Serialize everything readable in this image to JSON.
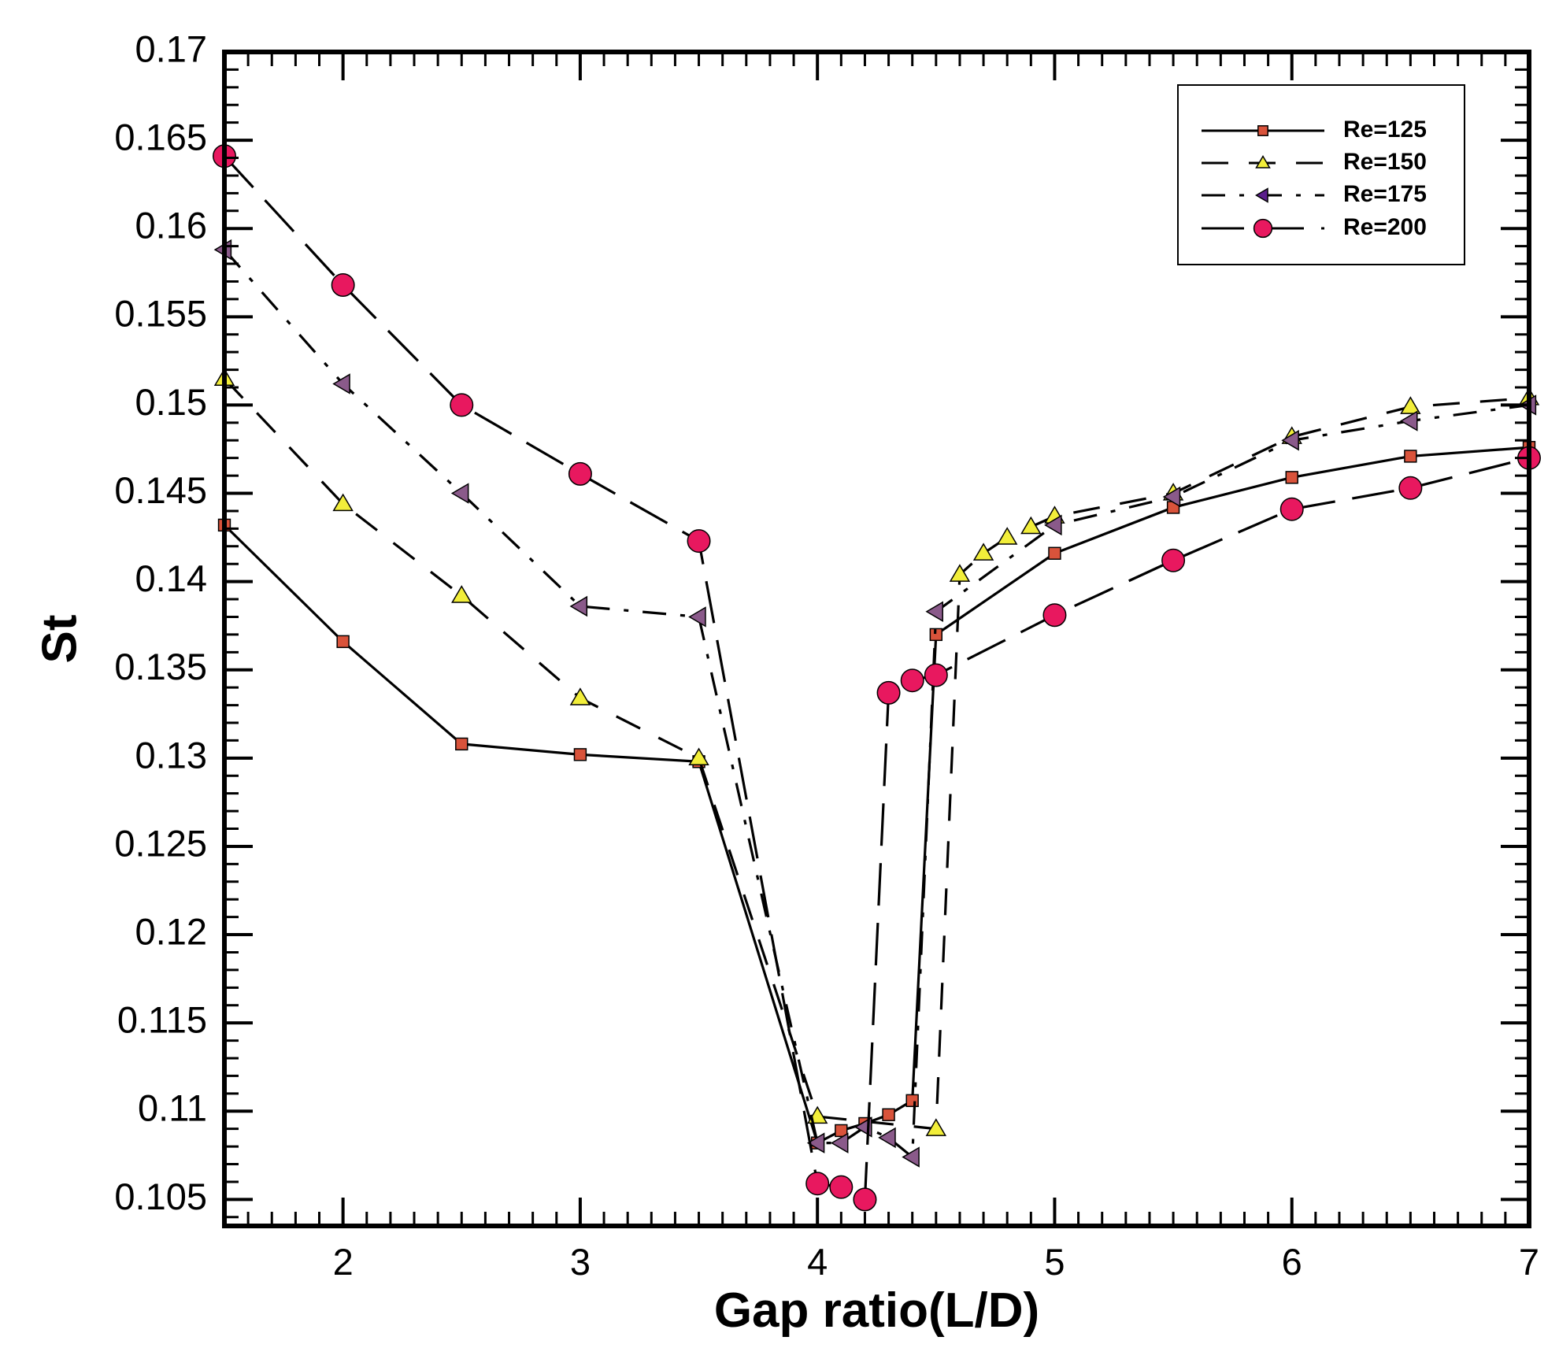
{
  "chart_data": {
    "type": "line",
    "title": "",
    "xlabel": "Gap ratio(L/D)",
    "ylabel": "St",
    "xlim": [
      1.5,
      7
    ],
    "ylim": [
      0.1035,
      0.17
    ],
    "xticks": [
      2,
      3,
      4,
      5,
      6,
      7
    ],
    "xtick_labels": [
      "2",
      "3",
      "4",
      "5",
      "6",
      "7"
    ],
    "yticks": [
      0.105,
      0.11,
      0.115,
      0.12,
      0.125,
      0.13,
      0.135,
      0.14,
      0.145,
      0.15,
      0.155,
      0.16,
      0.165,
      0.17
    ],
    "ytick_labels": [
      "0.105",
      "0.11",
      "0.115",
      "0.12",
      "0.125",
      "0.13",
      "0.135",
      "0.14",
      "0.145",
      "0.15",
      "0.155",
      "0.16",
      "0.165",
      "0.17"
    ],
    "grid": false,
    "legend_position": "top-right",
    "series": [
      {
        "name": "Re=125",
        "marker": "square",
        "color": "#d9533b",
        "dash": "solid",
        "x": [
          1.5,
          2,
          2.5,
          3,
          3.5,
          4,
          4.1,
          4.2,
          4.3,
          4.4,
          4.5,
          5,
          5.5,
          6,
          6.5,
          7
        ],
        "y": [
          0.1432,
          0.1366,
          0.1308,
          0.1302,
          0.1298,
          0.1082,
          0.1089,
          0.1093,
          0.1098,
          0.1106,
          0.137,
          0.1416,
          0.1442,
          0.1459,
          0.1471,
          0.1476
        ]
      },
      {
        "name": "Re=150",
        "marker": "triangle-up",
        "color": "#f2ee3a",
        "dash": "dash",
        "x": [
          1.5,
          2,
          2.5,
          3,
          3.5,
          4,
          4.5,
          4.6,
          4.7,
          4.8,
          4.9,
          5,
          5.5,
          6,
          6.5,
          7
        ],
        "y": [
          0.1515,
          0.1444,
          0.1392,
          0.1334,
          0.13,
          0.1097,
          0.109,
          0.1404,
          0.1416,
          0.1425,
          0.1431,
          0.1437,
          0.145,
          0.1482,
          0.1499,
          0.1504
        ]
      },
      {
        "name": "Re=175",
        "marker": "triangle-left",
        "color": "#8a5a8a",
        "dash": "dashdot",
        "x": [
          1.5,
          2,
          2.5,
          3,
          3.5,
          4,
          4.1,
          4.2,
          4.3,
          4.4,
          4.5,
          5,
          5.5,
          6,
          6.5,
          7
        ],
        "y": [
          0.1588,
          0.1512,
          0.145,
          0.1386,
          0.138,
          0.1082,
          0.1082,
          0.1091,
          0.1085,
          0.1074,
          0.1383,
          0.1432,
          0.1448,
          0.148,
          0.1491,
          0.15
        ]
      },
      {
        "name": "Re=200",
        "marker": "circle",
        "color": "#e8185f",
        "dash": "longdash",
        "x": [
          1.5,
          2,
          2.5,
          3,
          3.5,
          4,
          4.1,
          4.2,
          4.3,
          4.4,
          4.5,
          5,
          5.5,
          6,
          6.5,
          7
        ],
        "y": [
          0.1641,
          0.1568,
          0.15,
          0.1461,
          0.1423,
          0.1059,
          0.1057,
          0.105,
          0.1337,
          0.1344,
          0.1347,
          0.1381,
          0.1412,
          0.1441,
          0.1453,
          0.147
        ]
      }
    ]
  }
}
